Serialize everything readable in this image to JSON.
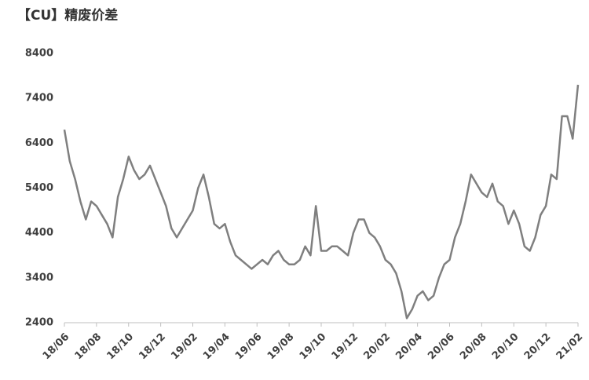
{
  "chart_data": {
    "type": "line",
    "title": "【CU】精废价差",
    "categories": [
      "18/06",
      null,
      null,
      null,
      null,
      null,
      "18/08",
      null,
      null,
      null,
      null,
      null,
      "18/10",
      null,
      null,
      null,
      null,
      null,
      "18/12",
      null,
      null,
      null,
      null,
      null,
      "19/02",
      null,
      null,
      null,
      null,
      null,
      "19/04",
      null,
      null,
      null,
      null,
      null,
      "19/06",
      null,
      null,
      null,
      null,
      null,
      "19/08",
      null,
      null,
      null,
      null,
      null,
      "19/10",
      null,
      null,
      null,
      null,
      null,
      "19/12",
      null,
      null,
      null,
      null,
      null,
      "20/02",
      null,
      null,
      null,
      null,
      null,
      "20/04",
      null,
      null,
      null,
      null,
      null,
      "20/06",
      null,
      null,
      null,
      null,
      null,
      "20/08",
      null,
      null,
      null,
      null,
      null,
      "20/10",
      null,
      null,
      null,
      null,
      null,
      "20/12",
      null,
      null,
      null,
      null,
      null,
      "21/02"
    ],
    "values": [
      6700,
      6000,
      5600,
      5100,
      4700,
      5100,
      5000,
      4800,
      4600,
      4300,
      5200,
      5600,
      6100,
      5800,
      5600,
      5700,
      5900,
      5600,
      5300,
      5000,
      4500,
      4300,
      4500,
      4700,
      4900,
      5400,
      5700,
      5200,
      4600,
      4500,
      4600,
      4200,
      3900,
      3800,
      3700,
      3600,
      3700,
      3800,
      3700,
      3900,
      4000,
      3800,
      3700,
      3700,
      3800,
      4100,
      3900,
      5000,
      4000,
      4000,
      4100,
      4100,
      4000,
      3900,
      4400,
      4700,
      4700,
      4400,
      4300,
      4100,
      3800,
      3700,
      3500,
      3100,
      2500,
      2700,
      3000,
      3100,
      2900,
      3000,
      3400,
      3700,
      3800,
      4300,
      4600,
      5100,
      5700,
      5500,
      5300,
      5200,
      5500,
      5100,
      5000,
      4600,
      4900,
      4600,
      4100,
      4000,
      4300,
      4800,
      5000,
      5700,
      5600,
      7000,
      7000,
      6500,
      7700
    ],
    "color": "#7f7f7f",
    "ylim": [
      2400,
      8400
    ],
    "yticks": [
      2400,
      3400,
      4400,
      5400,
      6400,
      7400,
      8400
    ]
  }
}
